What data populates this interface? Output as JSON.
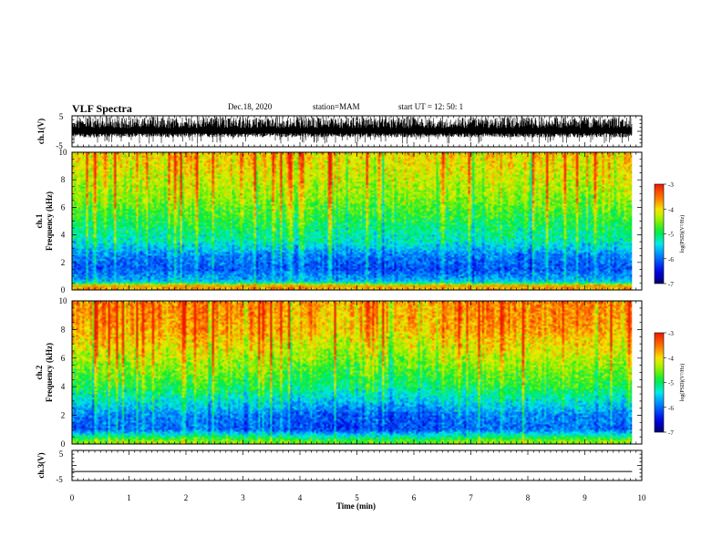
{
  "header": {
    "title": "VLF Spectra",
    "date": "Dec.18, 2020",
    "station": "station=MAM",
    "start": "start  UT =   12: 50: 1"
  },
  "chart_data": [
    {
      "type": "line",
      "panel": "ch1-waveform",
      "ylabel": "ch.1(V)",
      "ylim": [
        -5,
        5
      ],
      "yticks": [
        "5",
        "-5"
      ],
      "xlim": [
        0,
        10
      ],
      "data_extent_min": 9.83,
      "trace": "dense broadband noise, envelope approx -1.5 to 5 V"
    },
    {
      "type": "heatmap",
      "panel": "ch1-spectrogram",
      "ylabel": "ch.1\nFrequency (kHz)",
      "ylim": [
        0,
        10
      ],
      "yticks": [
        "0",
        "2",
        "4",
        "6",
        "8",
        "10"
      ],
      "xlim": [
        0,
        10
      ],
      "data_extent_min": 9.83,
      "colorbar": {
        "label": "log(PSD)(V²/Hz)",
        "range": [
          -7,
          -3
        ],
        "ticks": [
          "-3",
          "-4",
          "-5",
          "-6",
          "-7"
        ]
      },
      "level_profile": [
        {
          "freq_khz": 0.3,
          "log_psd": -3.8
        },
        {
          "freq_khz": 0.6,
          "log_psd": -5.6
        },
        {
          "freq_khz": 1.5,
          "log_psd": -6.1
        },
        {
          "freq_khz": 2.5,
          "log_psd": -5.9
        },
        {
          "freq_khz": 3.5,
          "log_psd": -5.3
        },
        {
          "freq_khz": 5.0,
          "log_psd": -4.9
        },
        {
          "freq_khz": 7.0,
          "log_psd": -4.4
        },
        {
          "freq_khz": 9.0,
          "log_psd": -4.05
        },
        {
          "freq_khz": 10.0,
          "log_psd": -3.95
        }
      ]
    },
    {
      "type": "heatmap",
      "panel": "ch2-spectrogram",
      "ylabel": "ch.2\nFrequency (kHz)",
      "ylim": [
        0,
        10
      ],
      "yticks": [
        "0",
        "2",
        "4",
        "6",
        "8",
        "10"
      ],
      "xlim": [
        0,
        10
      ],
      "data_extent_min": 9.83,
      "colorbar": {
        "label": "log(PSD)(V²/Hz)",
        "range": [
          -7,
          -3
        ],
        "ticks": [
          "-3",
          "-4",
          "-5",
          "-6",
          "-7"
        ]
      },
      "level_profile": [
        {
          "freq_khz": 0.2,
          "log_psd": -4.6
        },
        {
          "freq_khz": 1.0,
          "log_psd": -6.1
        },
        {
          "freq_khz": 2.0,
          "log_psd": -6.0
        },
        {
          "freq_khz": 3.0,
          "log_psd": -5.5
        },
        {
          "freq_khz": 4.0,
          "log_psd": -5.0
        },
        {
          "freq_khz": 6.0,
          "log_psd": -4.4
        },
        {
          "freq_khz": 8.0,
          "log_psd": -3.85
        },
        {
          "freq_khz": 10.0,
          "log_psd": -3.7
        }
      ]
    },
    {
      "type": "line",
      "panel": "ch3-waveform",
      "ylabel": "ch.3(V)",
      "ylim": [
        -5,
        5
      ],
      "yticks": [
        "5",
        "-5"
      ],
      "xlim": [
        0,
        10
      ],
      "x": [
        0,
        9.83
      ],
      "y": [
        -2,
        -2
      ]
    }
  ],
  "xaxis": {
    "label": "Time  (min)",
    "ticks": [
      "0",
      "1",
      "2",
      "3",
      "4",
      "5",
      "6",
      "7",
      "8",
      "9",
      "10"
    ]
  }
}
